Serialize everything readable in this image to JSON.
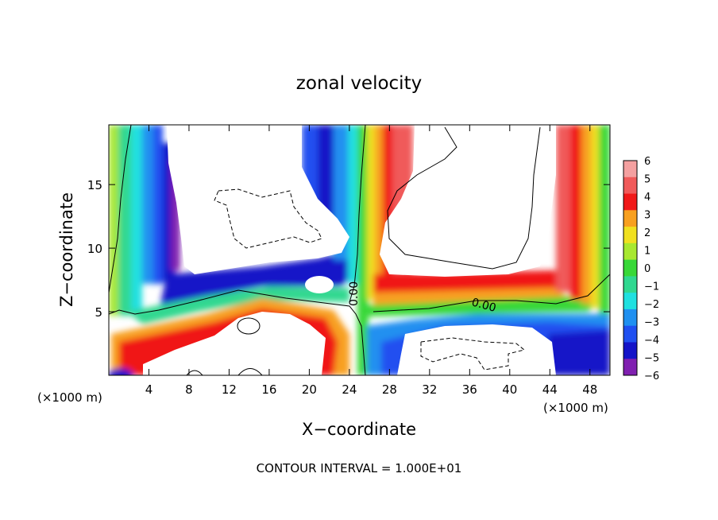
{
  "chart_data": {
    "type": "heatmap",
    "title": "zonal velocity",
    "xlabel": "X−coordinate",
    "ylabel": "Z−coordinate",
    "x_unit_left": "(×1000 m)",
    "x_unit_right": "(×1000 m)",
    "footer": "CONTOUR INTERVAL = 1.000E+01",
    "xlim": [
      0,
      50
    ],
    "ylim": [
      0,
      19.7
    ],
    "x_ticks": [
      4,
      8,
      12,
      16,
      20,
      24,
      28,
      32,
      36,
      40,
      44,
      48
    ],
    "x_tick_labels": [
      "4",
      "8",
      "12",
      "16",
      "20",
      "24",
      "28",
      "32",
      "36",
      "40",
      "44",
      "48"
    ],
    "y_ticks": [
      5,
      10,
      15
    ],
    "y_tick_labels": [
      "5",
      "10",
      "15"
    ],
    "contour_labels": [
      "0.00",
      "0.00"
    ],
    "colorbar": {
      "levels": [
        6,
        5,
        4,
        3,
        2,
        1,
        0,
        -1,
        -2,
        -3,
        -4,
        -5,
        -6
      ],
      "labels": [
        "6",
        "5",
        "4",
        "3",
        "2",
        "1",
        "0",
        "−1",
        "−2",
        "−3",
        "−4",
        "−5",
        "−6"
      ],
      "colors": [
        "#f4a0a0",
        "#f05a5a",
        "#f01818",
        "#f8a020",
        "#f0e020",
        "#a8e830",
        "#38d838",
        "#30d890",
        "#20e0e0",
        "#2090f0",
        "#2050f0",
        "#1414c8",
        "#8020b0"
      ]
    }
  }
}
